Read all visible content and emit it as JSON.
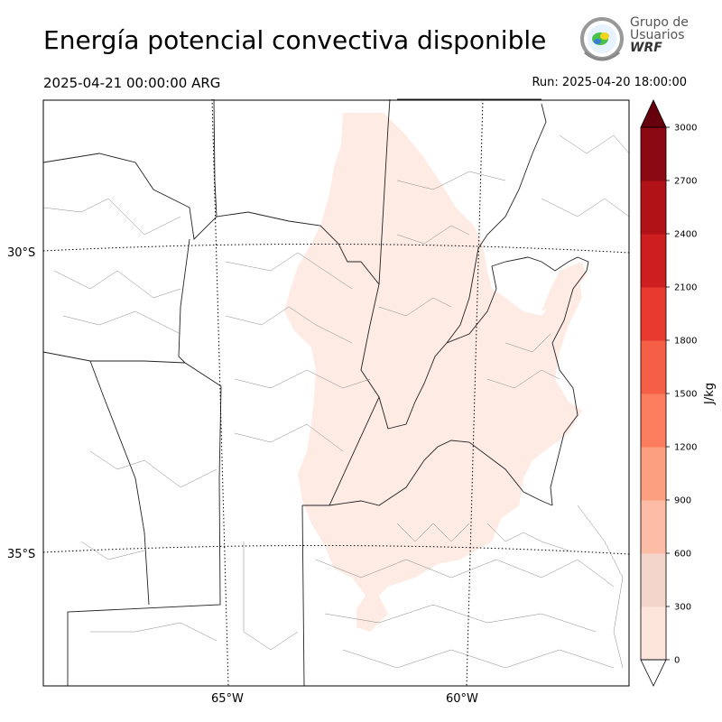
{
  "header": {
    "title": "Energía potencial convectiva disponible",
    "valid_time": "2025-04-21 00:00:00 ARG",
    "run_time": "Run: 2025-04-20 18:00:00"
  },
  "logo": {
    "line1": "Grupo de",
    "line2": "Usuarios",
    "line3": "WRF"
  },
  "map": {
    "lat_labels": [
      "30°S",
      "35°S"
    ],
    "lon_labels": [
      "65°W",
      "60°W"
    ]
  },
  "colorbar": {
    "label": "J/kg",
    "ticks": [
      "0",
      "300",
      "600",
      "900",
      "1200",
      "1500",
      "1800",
      "2100",
      "2400",
      "2700",
      "3000"
    ],
    "colors": [
      "#fee5dc",
      "#f3d5cc",
      "#fcbca5",
      "#fc9f80",
      "#fb7d5d",
      "#f45f45",
      "#e83a2e",
      "#cd1f1f",
      "#b01218",
      "#8b0912",
      "#67000d"
    ],
    "extend": "both"
  },
  "field_color": "#fdebe4"
}
